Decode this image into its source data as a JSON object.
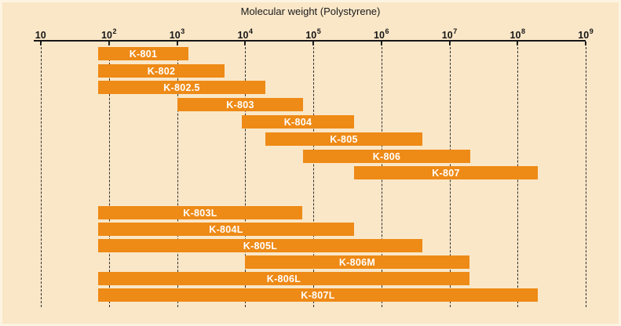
{
  "title": "Molecular weight (Polystyrene)",
  "colors": {
    "panel_background": "#fae7c8",
    "panel_border": "#fdf3e1",
    "bar": "#ee8a16",
    "bar_text": "#ffffff",
    "axis": "#161616",
    "gridline": "#2e2e2e"
  },
  "axis": {
    "ticks": [
      {
        "label": "10",
        "exp": "",
        "value": 10
      },
      {
        "label": "10",
        "exp": "2",
        "value": 100
      },
      {
        "label": "10",
        "exp": "3",
        "value": 1000
      },
      {
        "label": "10",
        "exp": "4",
        "value": 10000
      },
      {
        "label": "10",
        "exp": "5",
        "value": 100000
      },
      {
        "label": "10",
        "exp": "6",
        "value": 1000000
      },
      {
        "label": "10",
        "exp": "7",
        "value": 10000000
      },
      {
        "label": "10",
        "exp": "8",
        "value": 100000000
      },
      {
        "label": "10",
        "exp": "9",
        "value": 1000000000
      }
    ]
  },
  "chart_data": {
    "type": "bar",
    "subtype": "horizontal-range",
    "title": "Molecular weight (Polystyrene)",
    "xlabel": "Molecular weight (Polystyrene)",
    "x_scale": "log10",
    "xlim": [
      10,
      1000000000
    ],
    "grid": "vertical-dashed-per-decade",
    "legend": "none",
    "series": [
      {
        "name": "K-801",
        "group": 1,
        "mw_min": 70,
        "mw_max": 1500
      },
      {
        "name": "K-802",
        "group": 1,
        "mw_min": 70,
        "mw_max": 5000
      },
      {
        "name": "K-802.5",
        "group": 1,
        "mw_min": 70,
        "mw_max": 20000
      },
      {
        "name": "K-803",
        "group": 1,
        "mw_min": 1000,
        "mw_max": 70000
      },
      {
        "name": "K-804",
        "group": 1,
        "mw_min": 9000,
        "mw_max": 400000
      },
      {
        "name": "K-805",
        "group": 1,
        "mw_min": 20000,
        "mw_max": 4000000
      },
      {
        "name": "K-806",
        "group": 1,
        "mw_min": 70000,
        "mw_max": 20000000
      },
      {
        "name": "K-807",
        "group": 1,
        "mw_min": 400000,
        "mw_max": 200000000
      },
      {
        "name": "K-803L",
        "group": 2,
        "mw_min": 70,
        "mw_max": 70000
      },
      {
        "name": "K-804L",
        "group": 2,
        "mw_min": 70,
        "mw_max": 400000
      },
      {
        "name": "K-805L",
        "group": 2,
        "mw_min": 70,
        "mw_max": 4000000
      },
      {
        "name": "K-806M",
        "group": 2,
        "mw_min": 10000,
        "mw_max": 20000000
      },
      {
        "name": "K-806L",
        "group": 2,
        "mw_min": 70,
        "mw_max": 20000000
      },
      {
        "name": "K-807L",
        "group": 2,
        "mw_min": 70,
        "mw_max": 200000000
      }
    ]
  }
}
